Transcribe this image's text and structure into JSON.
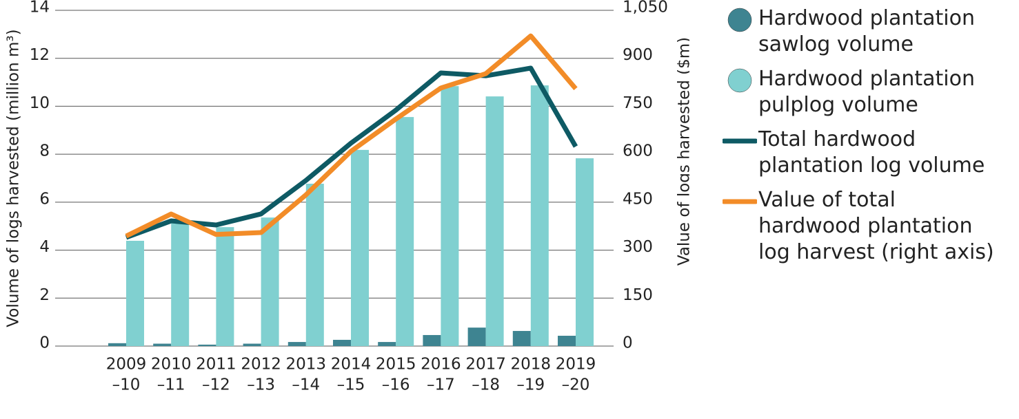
{
  "chart_data": {
    "type": "bar",
    "categories": [
      [
        "2009",
        "–10"
      ],
      [
        "2010",
        "–11"
      ],
      [
        "2011",
        "–12"
      ],
      [
        "2012",
        "–13"
      ],
      [
        "2013",
        "–14"
      ],
      [
        "2014",
        "–15"
      ],
      [
        "2015",
        "–16"
      ],
      [
        "2016",
        "–17"
      ],
      [
        "2017",
        "–18"
      ],
      [
        "2018",
        "–19"
      ],
      [
        "2019",
        "–20"
      ]
    ],
    "y_label": "Volume of logs harvested (million m³)",
    "y2_label": "Value of logs harvested ($m)",
    "ylim": [
      0,
      14
    ],
    "yticks": [
      0,
      2,
      4,
      6,
      8,
      10,
      12,
      14
    ],
    "y2lim": [
      0,
      1050
    ],
    "y2ticks": [
      0,
      150,
      300,
      450,
      600,
      750,
      900,
      {
        "value": 1050,
        "label": "1,050"
      }
    ],
    "grid": true,
    "series": [
      {
        "name": "Hardwood plantation sawlog volume",
        "type": "bar",
        "color": "#3e8491",
        "values": [
          0.12,
          0.1,
          0.06,
          0.1,
          0.17,
          0.26,
          0.17,
          0.46,
          0.77,
          0.63,
          0.43
        ]
      },
      {
        "name": "Hardwood plantation pulplog volume",
        "type": "bar",
        "color": "#80d0d0",
        "values": [
          4.39,
          5.22,
          4.96,
          5.36,
          6.77,
          8.18,
          9.55,
          10.84,
          10.41,
          10.87,
          7.83
        ]
      },
      {
        "name": "Total hardwood plantation log volume",
        "type": "line",
        "color": "#0e5a64",
        "values": [
          4.53,
          5.22,
          5.05,
          5.51,
          6.91,
          8.46,
          9.84,
          11.39,
          11.27,
          11.59,
          8.32
        ]
      },
      {
        "name": "Value of total hardwood plantation log harvest (right axis)",
        "type": "line",
        "axis": "y2",
        "color": "#f28c28",
        "values": [
          344,
          413,
          349,
          355,
          473,
          609,
          710,
          807,
          852,
          970,
          805
        ]
      }
    ]
  }
}
